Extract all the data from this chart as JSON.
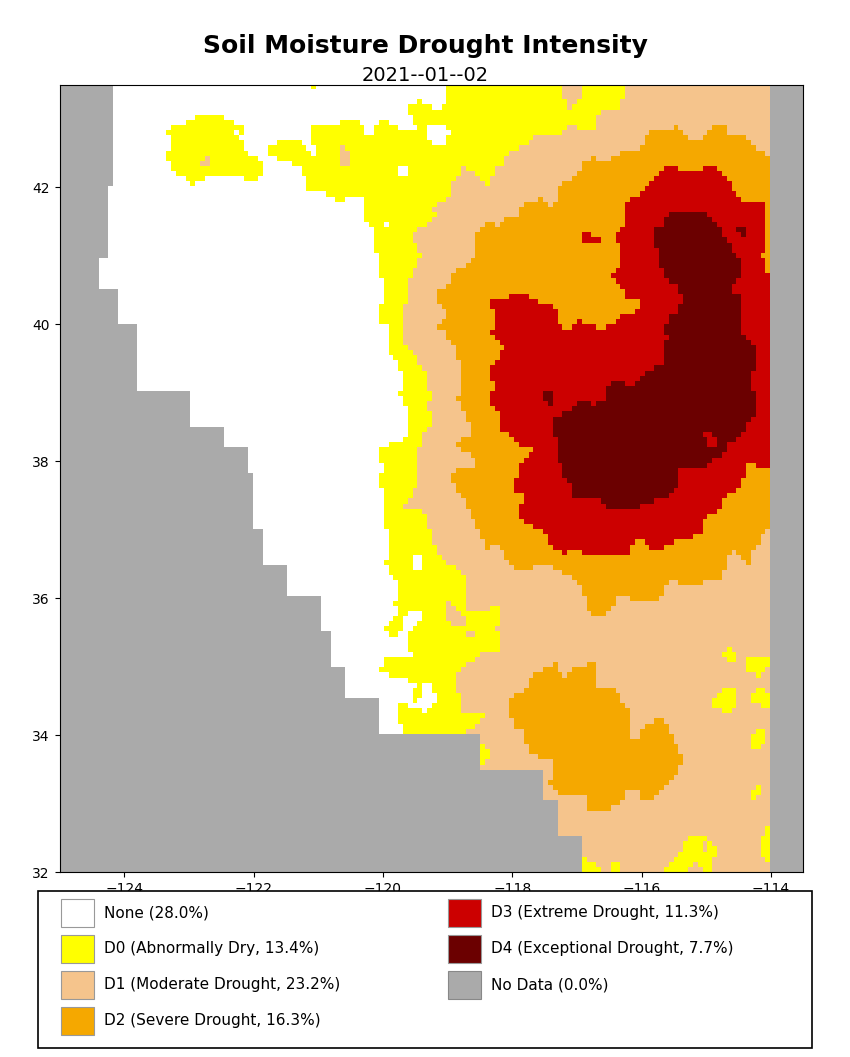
{
  "title": "Soil Moisture Drought Intensity",
  "date": "2021--01--02",
  "lon_min": -125.0,
  "lon_max": -113.5,
  "lat_min": 32.0,
  "lat_max": 43.5,
  "gridlines_lon": [
    -125,
    -120,
    -115
  ],
  "gridlines_lat": [
    35,
    40
  ],
  "categories": [
    {
      "label": "None (28.0%)",
      "color": "#ffffff",
      "edgecolor": "#999999"
    },
    {
      "label": "D0 (Abnormally Dry, 13.4%)",
      "color": "#ffff00",
      "edgecolor": "#999999"
    },
    {
      "label": "D1 (Moderate Drought, 23.2%)",
      "color": "#f5c48c",
      "edgecolor": "#999999"
    },
    {
      "label": "D2 (Severe Drought, 16.3%)",
      "color": "#f5a800",
      "edgecolor": "#999999"
    },
    {
      "label": "D3 (Extreme Drought, 11.3%)",
      "color": "#cc0000",
      "edgecolor": "#999999"
    },
    {
      "label": "D4 (Exceptional Drought, 7.7%)",
      "color": "#6b0000",
      "edgecolor": "#999999"
    },
    {
      "label": "No Data (0.0%)",
      "color": "#aaaaaa",
      "edgecolor": "#888888"
    }
  ],
  "ocean_color": "#aaaaaa",
  "title_fontsize": 18,
  "date_fontsize": 14,
  "tick_fontsize": 11,
  "legend_fontsize": 11,
  "fig_width": 8.5,
  "fig_height": 10.57,
  "dpi": 100
}
